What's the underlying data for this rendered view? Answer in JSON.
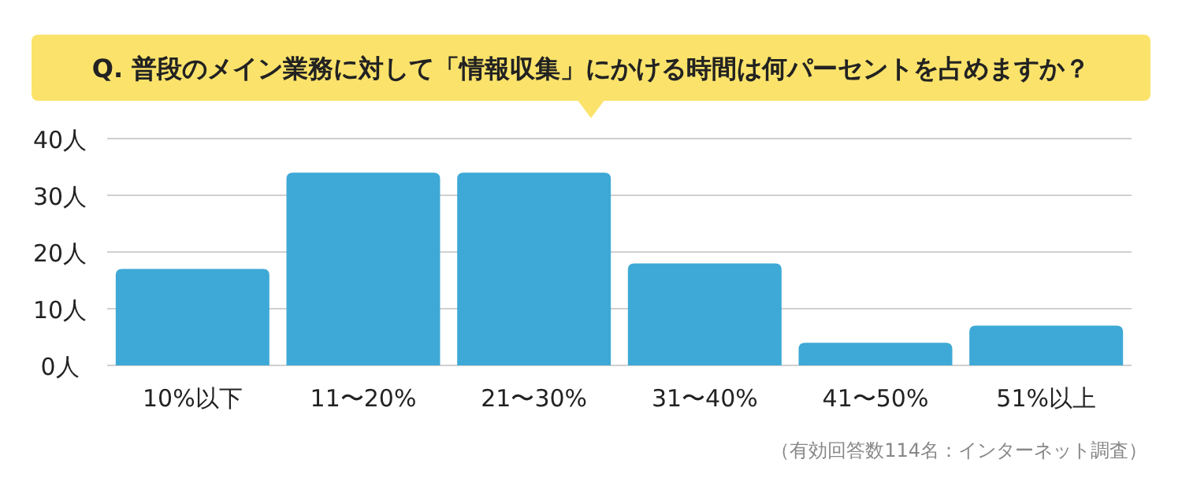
{
  "chart_data": {
    "type": "bar",
    "title": "Q. 普段のメイン業務に対して「情報収集」にかける時間は何パーセントを占めますか？",
    "categories": [
      "10%以下",
      "11〜20%",
      "21〜30%",
      "31〜40%",
      "41〜50%",
      "51%以上"
    ],
    "values": [
      17,
      34,
      34,
      18,
      4,
      7
    ],
    "color": "#3ea9d6",
    "ylim": [
      0,
      40
    ],
    "yticks": [
      {
        "value": 0,
        "label": "0人"
      },
      {
        "value": 10,
        "label": "10人"
      },
      {
        "value": 20,
        "label": "20人"
      },
      {
        "value": 30,
        "label": "30人"
      },
      {
        "value": 40,
        "label": "40人"
      }
    ],
    "grid": "y",
    "annotations": [
      "（有効回答数114名：インターネット調査）"
    ]
  }
}
